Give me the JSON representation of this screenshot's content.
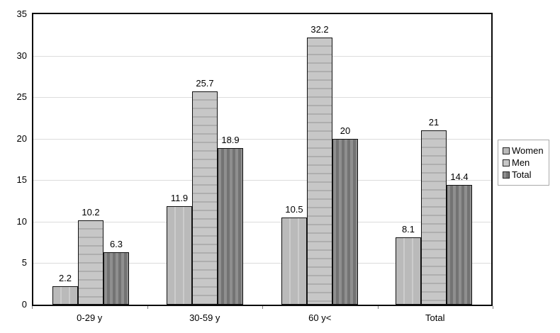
{
  "chart_data": {
    "type": "bar",
    "title": "",
    "xlabel": "",
    "ylabel": "",
    "categories": [
      "0-29 y",
      "30-59 y",
      "60 y<",
      "Total"
    ],
    "series": [
      {
        "name": "Women",
        "values": [
          2.2,
          11.9,
          10.5,
          8.1
        ],
        "color": "#bababa",
        "pattern": "vertical-light-stripes"
      },
      {
        "name": "Men",
        "values": [
          10.2,
          25.7,
          32.2,
          21
        ],
        "color": "#c7c7c7",
        "pattern": "horizontal-stripes"
      },
      {
        "name": "Total",
        "values": [
          6.3,
          18.9,
          20,
          14.4
        ],
        "color": "#8f8f8f",
        "pattern": "vertical-dark-stripes"
      }
    ],
    "ylim": [
      0,
      35
    ],
    "yticks": [
      0,
      5,
      10,
      15,
      20,
      25,
      30,
      35
    ],
    "grid": true,
    "gridline_color": "#dcdcdc",
    "bar_value_labels": true,
    "legend_position": "right",
    "plot_border_color": "#0a0a0a",
    "background_color": "#ffffff"
  }
}
